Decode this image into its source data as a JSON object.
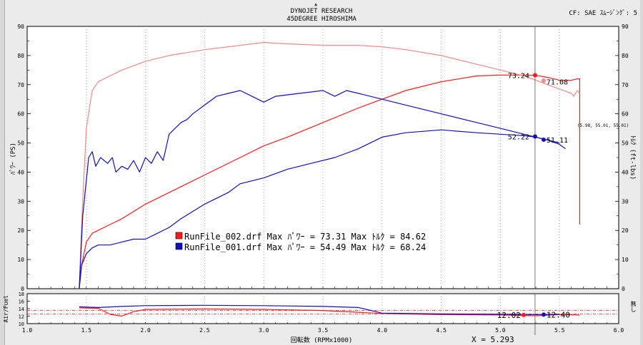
{
  "header": {
    "title_line1": "DYNOJET  RESEARCH",
    "title_line2": "45DEGREE HIROSHIMA",
    "cf_info": "CF: SAE  ｽﾑｰｼﾞﾝｸﾞ: 5"
  },
  "axes": {
    "y_left_label": "ﾊﾟﾜｰ (PS)",
    "y_right_label": "ﾄﾙｸ (ft-lbs)",
    "x_label": "回転数 (RPMx1000)",
    "af_left_label": "Air/Fuel",
    "af_right_label": "無し"
  },
  "cursor": {
    "label": "X = 5.293",
    "x": 5.293,
    "run2_power_readout": "73.24",
    "run2_torque_readout": "71.08",
    "run1_power_readout": "52.22",
    "run1_torque_readout": "51.11",
    "run2_af_readout": "12.02",
    "run1_af_readout": "12.40",
    "tooltip": "(5.98, 55.01, 55.01)"
  },
  "legend": [
    {
      "text": "RunFile_002.drf Max ﾊﾟﾜｰ = 73.31    Max ﾄﾙｸ = 84.62",
      "color": "#ff1a1a"
    },
    {
      "text": "RunFile_001.drf Max ﾊﾟﾜｰ = 54.49    Max ﾄﾙｸ = 68.24",
      "color": "#1010c0"
    }
  ],
  "chart_data": {
    "type": "line",
    "xlim": [
      1.0,
      6.0
    ],
    "ylim": [
      0,
      90
    ],
    "af_ylim": [
      10,
      18
    ],
    "x_ticks": [
      "1.0",
      "1.5",
      "2.0",
      "2.5",
      "3.0",
      "3.5",
      "4.0",
      "4.5",
      "5.0",
      "5.5",
      "6.0"
    ],
    "y_ticks": [
      "0",
      "10",
      "20",
      "30",
      "40",
      "50",
      "60",
      "70",
      "80",
      "90"
    ],
    "y_right_ticks": [
      "0",
      "10",
      "20",
      "30",
      "40",
      "50",
      "60",
      "70",
      "80",
      "90"
    ],
    "af_ticks": [
      "10",
      "12",
      "14",
      "16",
      "18"
    ],
    "series": [
      {
        "name": "RunFile_002.drf ﾊﾟﾜｰ",
        "color": "#ff1a1a",
        "width": 1.2,
        "x": [
          1.44,
          1.46,
          1.5,
          1.55,
          1.6,
          1.7,
          1.8,
          2.0,
          2.2,
          2.5,
          2.8,
          3.0,
          3.2,
          3.5,
          3.8,
          4.0,
          4.2,
          4.5,
          4.8,
          5.0,
          5.2,
          5.3,
          5.4,
          5.5,
          5.6,
          5.65,
          5.67,
          5.67
        ],
        "y": [
          0,
          8,
          16,
          19,
          20,
          22,
          24,
          29,
          33,
          39,
          45,
          49,
          52,
          57,
          62,
          65,
          68,
          71,
          73,
          73.3,
          73.3,
          73.2,
          72.5,
          71.5,
          71.5,
          72,
          72,
          22
        ]
      },
      {
        "name": "RunFile_002.drf ﾄﾙｸ",
        "color": "#f28a8a",
        "width": 1.2,
        "x": [
          1.44,
          1.46,
          1.5,
          1.55,
          1.6,
          1.7,
          1.8,
          2.0,
          2.2,
          2.5,
          2.8,
          3.0,
          3.2,
          3.5,
          3.8,
          4.0,
          4.2,
          4.5,
          4.8,
          5.0,
          5.2,
          5.3,
          5.4,
          5.5,
          5.6,
          5.62,
          5.65,
          5.67
        ],
        "y": [
          0,
          22,
          55,
          68,
          71,
          73,
          75,
          78,
          80,
          82,
          83.5,
          84.5,
          84,
          83.5,
          83.5,
          83,
          82,
          80,
          77,
          75,
          73,
          71.5,
          70,
          68.5,
          67,
          66,
          68,
          67
        ]
      },
      {
        "name": "RunFile_001.drf ﾊﾟﾜｰ",
        "color": "#1010c0",
        "width": 1.2,
        "x": [
          1.44,
          1.46,
          1.5,
          1.55,
          1.6,
          1.7,
          1.8,
          1.9,
          2.0,
          2.1,
          2.2,
          2.3,
          2.5,
          2.7,
          2.8,
          2.9,
          3.0,
          3.2,
          3.4,
          3.6,
          3.8,
          4.0,
          4.2,
          4.5,
          4.8,
          5.0,
          5.2,
          5.3,
          5.4,
          5.5,
          5.55
        ],
        "y": [
          0,
          8,
          12,
          14,
          15,
          15,
          16,
          17,
          17,
          19,
          21,
          24,
          29,
          33,
          36,
          37,
          38,
          41,
          43,
          45,
          48,
          52,
          53.5,
          54.5,
          53.5,
          53,
          52.5,
          52,
          51,
          49.5,
          48
        ]
      },
      {
        "name": "RunFile_001.drf ﾄﾙｸ",
        "color": "#1010c0",
        "width": 1.2,
        "x": [
          1.44,
          1.47,
          1.52,
          1.55,
          1.58,
          1.62,
          1.68,
          1.72,
          1.75,
          1.8,
          1.85,
          1.9,
          1.95,
          2.0,
          2.05,
          2.1,
          2.15,
          2.2,
          2.25,
          2.3,
          2.35,
          2.4,
          2.5,
          2.6,
          2.7,
          2.8,
          2.9,
          3.0,
          3.1,
          3.3,
          3.5,
          3.6,
          3.7,
          3.8,
          4.0,
          4.2,
          4.5,
          4.8,
          5.0,
          5.2,
          5.3,
          5.4,
          5.5
        ],
        "y": [
          0,
          25,
          45,
          47,
          42,
          45,
          43,
          45,
          40,
          42,
          41,
          44,
          40,
          45,
          43,
          47,
          44,
          53,
          55,
          57,
          58,
          60,
          63,
          66,
          67,
          68,
          66,
          64,
          66,
          67,
          68,
          66,
          68,
          67,
          65,
          63,
          60,
          57,
          55,
          53,
          52,
          51,
          50
        ]
      }
    ],
    "af_series": [
      {
        "name": "RunFile_002.drf Air/Fuel",
        "color": "#ff1a1a",
        "x": [
          1.44,
          1.6,
          1.7,
          1.8,
          1.9,
          2.0,
          2.5,
          3.0,
          3.5,
          4.0,
          4.5,
          5.0,
          5.3,
          5.5,
          5.67
        ],
        "y": [
          14.2,
          14.1,
          12.5,
          12,
          13.2,
          13.8,
          13.9,
          13.8,
          13.5,
          12.7,
          12.4,
          12.3,
          12.1,
          12.4,
          12.3
        ]
      },
      {
        "name": "RunFile_001.drf Air/Fuel",
        "color": "#1010c0",
        "x": [
          1.44,
          1.6,
          1.8,
          2.0,
          2.5,
          3.0,
          3.5,
          3.8,
          4.0,
          4.5,
          5.0,
          5.3,
          5.5
        ],
        "y": [
          14.5,
          14.3,
          14.6,
          14.8,
          14.9,
          14.8,
          14.6,
          14.3,
          12.8,
          12.6,
          12.5,
          12.4,
          12.5
        ]
      }
    ],
    "af_reference": [
      {
        "y": 13.5,
        "color": "#ff1a1a"
      },
      {
        "y": 12.6,
        "color": "#ff1a1a"
      }
    ]
  }
}
